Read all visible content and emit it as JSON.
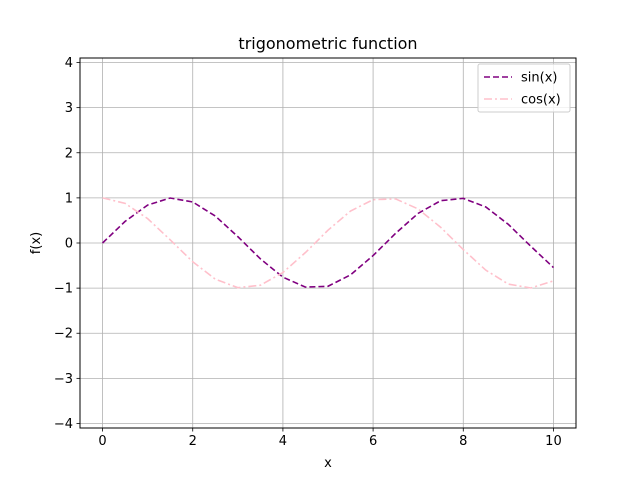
{
  "chart_data": {
    "type": "line",
    "title": "trigonometric function",
    "xlabel": "x",
    "ylabel": "f(x)",
    "xlim": [
      -0.5,
      10.5
    ],
    "ylim": [
      -4.1,
      4.1
    ],
    "x_ticks": [
      0,
      2,
      4,
      6,
      8,
      10
    ],
    "y_ticks": [
      -4,
      -3,
      -2,
      -1,
      0,
      1,
      2,
      3,
      4
    ],
    "grid": true,
    "legend_position": "top-right",
    "x": [
      0.0,
      0.5,
      1.0,
      1.5,
      2.0,
      2.5,
      3.0,
      3.5,
      4.0,
      4.5,
      5.0,
      5.5,
      6.0,
      6.5,
      7.0,
      7.5,
      8.0,
      8.5,
      9.0,
      9.5,
      10.0
    ],
    "series": [
      {
        "name": "sin(x)",
        "color": "#800080",
        "line_style": "dashed",
        "values": [
          0.0,
          0.479,
          0.841,
          0.997,
          0.909,
          0.598,
          0.141,
          -0.351,
          -0.757,
          -0.978,
          -0.959,
          -0.706,
          -0.279,
          0.215,
          0.657,
          0.938,
          0.989,
          0.798,
          0.412,
          -0.075,
          -0.544
        ]
      },
      {
        "name": "cos(x)",
        "color": "#ffc0cb",
        "line_style": "dashdot",
        "values": [
          1.0,
          0.878,
          0.54,
          0.071,
          -0.416,
          -0.801,
          -0.99,
          -0.936,
          -0.654,
          -0.211,
          0.284,
          0.709,
          0.96,
          0.977,
          0.754,
          0.347,
          -0.146,
          -0.602,
          -0.911,
          -0.997,
          -0.839
        ]
      }
    ]
  }
}
